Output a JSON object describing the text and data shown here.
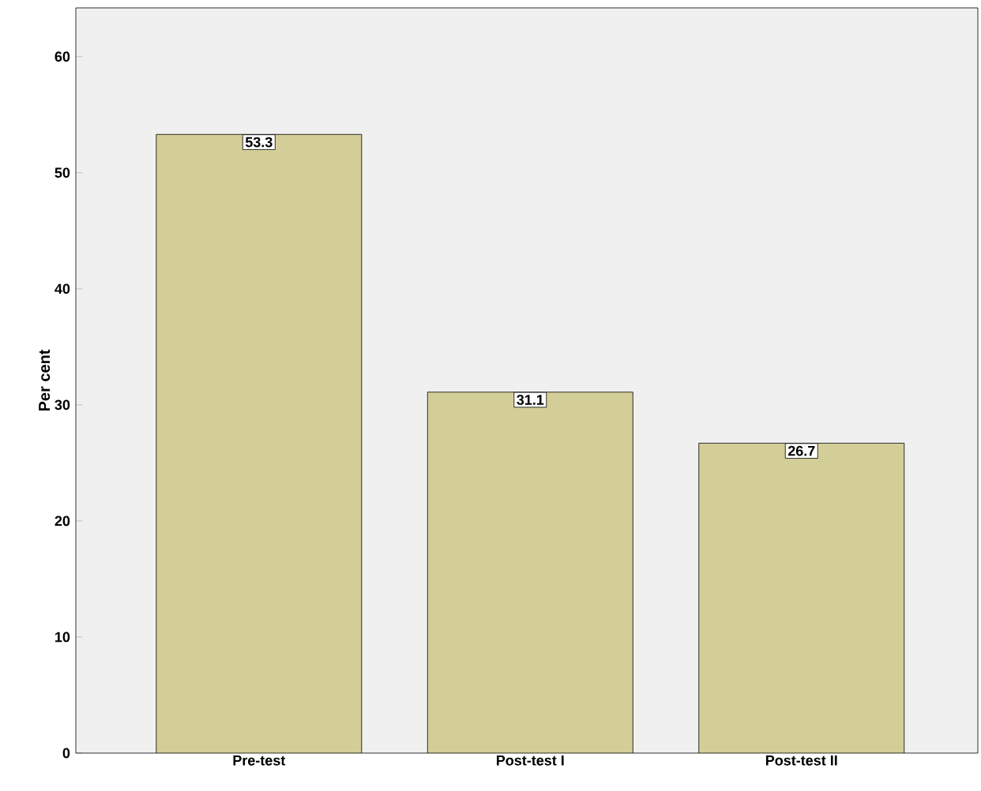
{
  "chart_data": {
    "type": "bar",
    "ylabel": "Per cent",
    "categories": [
      "Pre-test",
      "Post-test I",
      "Post-test II"
    ],
    "values": [
      53.3,
      31.1,
      26.7
    ],
    "color": "#d3ce98",
    "ylim": [
      0,
      64.2
    ],
    "yticks": [
      0,
      10,
      20,
      30,
      40,
      50,
      60
    ],
    "data_labels": true
  }
}
